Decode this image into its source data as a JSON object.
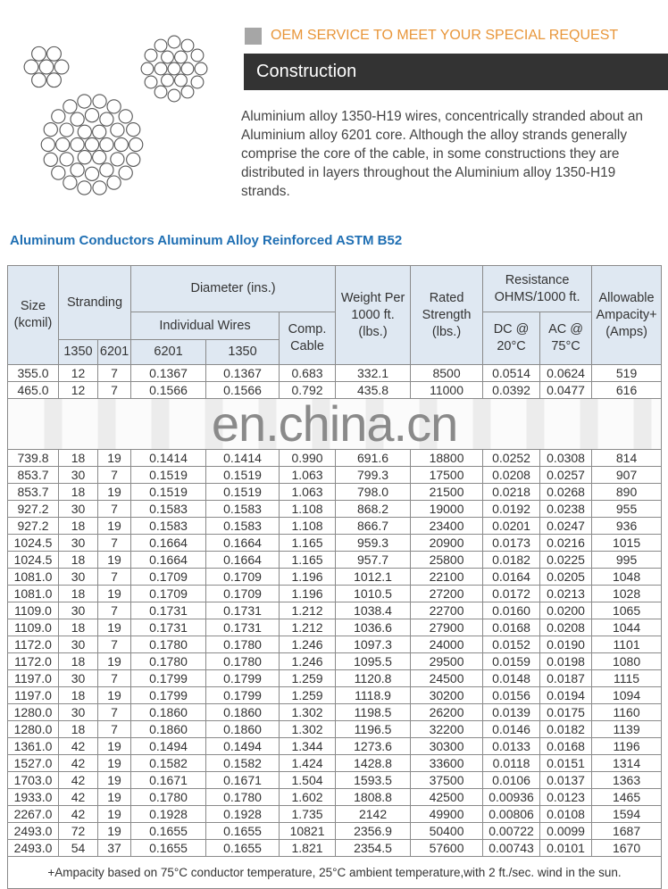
{
  "banner": {
    "oem_text": "OEM SERVICE TO MEET YOUR SPECIAL REQUEST",
    "section_title": "Construction"
  },
  "description": "Aluminium alloy 1350-H19 wires, concentrically stranded about an Aluminium alloy 6201 core. Although the alloy strands generally comprise the core of the cable, in some constructions they are distributed in layers throughout the Aluminium alloy 1350-H19 strands.",
  "table": {
    "title": "Aluminum Conductors Aluminum Alloy Reinforced  ASTM B52",
    "headers": {
      "size": "Size (kcmil)",
      "stranding": "Stranding",
      "diameter": "Diameter (ins.)",
      "individual_wires": "Individual Wires",
      "comp_cable": "Comp. Cable",
      "weight": "Weight Per 1000 ft. (lbs.)",
      "rated": "Rated Strength (lbs.)",
      "resistance": "Resistance OHMS/1000 ft.",
      "ampacity": "Allowable Ampacity+ (Amps)",
      "s1350": "1350",
      "s6201": "6201",
      "d6201": "6201",
      "d1350": "1350",
      "dc": "DC @ 20°C",
      "ac": "AC @ 75°C"
    },
    "rows_top": [
      [
        "355.0",
        "12",
        "7",
        "0.1367",
        "0.1367",
        "0.683",
        "332.1",
        "8500",
        "0.0514",
        "0.0624",
        "519"
      ],
      [
        "465.0",
        "12",
        "7",
        "0.1566",
        "0.1566",
        "0.792",
        "435.8",
        "11000",
        "0.0392",
        "0.0477",
        "616"
      ]
    ],
    "rows": [
      [
        "739.8",
        "18",
        "19",
        "0.1414",
        "0.1414",
        "0.990",
        "691.6",
        "18800",
        "0.0252",
        "0.0308",
        "814"
      ],
      [
        "853.7",
        "30",
        "7",
        "0.1519",
        "0.1519",
        "1.063",
        "799.3",
        "17500",
        "0.0208",
        "0.0257",
        "907"
      ],
      [
        "853.7",
        "18",
        "19",
        "0.1519",
        "0.1519",
        "1.063",
        "798.0",
        "21500",
        "0.0218",
        "0.0268",
        "890"
      ],
      [
        "927.2",
        "30",
        "7",
        "0.1583",
        "0.1583",
        "1.108",
        "868.2",
        "19000",
        "0.0192",
        "0.0238",
        "955"
      ],
      [
        "927.2",
        "18",
        "19",
        "0.1583",
        "0.1583",
        "1.108",
        "866.7",
        "23400",
        "0.0201",
        "0.0247",
        "936"
      ],
      [
        "1024.5",
        "30",
        "7",
        "0.1664",
        "0.1664",
        "1.165",
        "959.3",
        "20900",
        "0.0173",
        "0.0216",
        "1015"
      ],
      [
        "1024.5",
        "18",
        "19",
        "0.1664",
        "0.1664",
        "1.165",
        "957.7",
        "25800",
        "0.0182",
        "0.0225",
        "995"
      ],
      [
        "1081.0",
        "30",
        "7",
        "0.1709",
        "0.1709",
        "1.196",
        "1012.1",
        "22100",
        "0.0164",
        "0.0205",
        "1048"
      ],
      [
        "1081.0",
        "18",
        "19",
        "0.1709",
        "0.1709",
        "1.196",
        "1010.5",
        "27200",
        "0.0172",
        "0.0213",
        "1028"
      ],
      [
        "1109.0",
        "30",
        "7",
        "0.1731",
        "0.1731",
        "1.212",
        "1038.4",
        "22700",
        "0.0160",
        "0.0200",
        "1065"
      ],
      [
        "1109.0",
        "18",
        "19",
        "0.1731",
        "0.1731",
        "1.212",
        "1036.6",
        "27900",
        "0.0168",
        "0.0208",
        "1044"
      ],
      [
        "1172.0",
        "30",
        "7",
        "0.1780",
        "0.1780",
        "1.246",
        "1097.3",
        "24000",
        "0.0152",
        "0.0190",
        "1101"
      ],
      [
        "1172.0",
        "18",
        "19",
        "0.1780",
        "0.1780",
        "1.246",
        "1095.5",
        "29500",
        "0.0159",
        "0.0198",
        "1080"
      ],
      [
        "1197.0",
        "30",
        "7",
        "0.1799",
        "0.1799",
        "1.259",
        "1120.8",
        "24500",
        "0.0148",
        "0.0187",
        "1115"
      ],
      [
        "1197.0",
        "18",
        "19",
        "0.1799",
        "0.1799",
        "1.259",
        "1118.9",
        "30200",
        "0.0156",
        "0.0194",
        "1094"
      ],
      [
        "1280.0",
        "30",
        "7",
        "0.1860",
        "0.1860",
        "1.302",
        "1198.5",
        "26200",
        "0.0139",
        "0.0175",
        "1160"
      ],
      [
        "1280.0",
        "18",
        "7",
        "0.1860",
        "0.1860",
        "1.302",
        "1196.5",
        "32200",
        "0.0146",
        "0.0182",
        "1139"
      ],
      [
        "1361.0",
        "42",
        "19",
        "0.1494",
        "0.1494",
        "1.344",
        "1273.6",
        "30300",
        "0.0133",
        "0.0168",
        "1196"
      ],
      [
        "1527.0",
        "42",
        "19",
        "0.1582",
        "0.1582",
        "1.424",
        "1428.8",
        "33600",
        "0.0118",
        "0.0151",
        "1314"
      ],
      [
        "1703.0",
        "42",
        "19",
        "0.1671",
        "0.1671",
        "1.504",
        "1593.5",
        "37500",
        "0.0106",
        "0.0137",
        "1363"
      ],
      [
        "1933.0",
        "42",
        "19",
        "0.1780",
        "0.1780",
        "1.602",
        "1808.8",
        "42500",
        "0.00936",
        "0.0123",
        "1465"
      ],
      [
        "2267.0",
        "42",
        "19",
        "0.1928",
        "0.1928",
        "1.735",
        "2142",
        "49900",
        "0.00806",
        "0.0108",
        "1594"
      ],
      [
        "2493.0",
        "72",
        "19",
        "0.1655",
        "0.1655",
        "10821",
        "2356.9",
        "50400",
        "0.00722",
        "0.0099",
        "1687"
      ],
      [
        "2493.0",
        "54",
        "37",
        "0.1655",
        "0.1655",
        "1.821",
        "2354.5",
        "57600",
        "0.00743",
        "0.0101",
        "1670"
      ]
    ],
    "footnote": "+Ampacity based on 75°C conductor temperature, 25°C ambient temperature,with 2 ft./sec. wind in the sun."
  },
  "watermark": "en.china.cn",
  "colors": {
    "oem": "#e8963a",
    "title_blue": "#1f6fb3",
    "header_bg": "#dfe8f2",
    "section_bar": "#333333"
  }
}
